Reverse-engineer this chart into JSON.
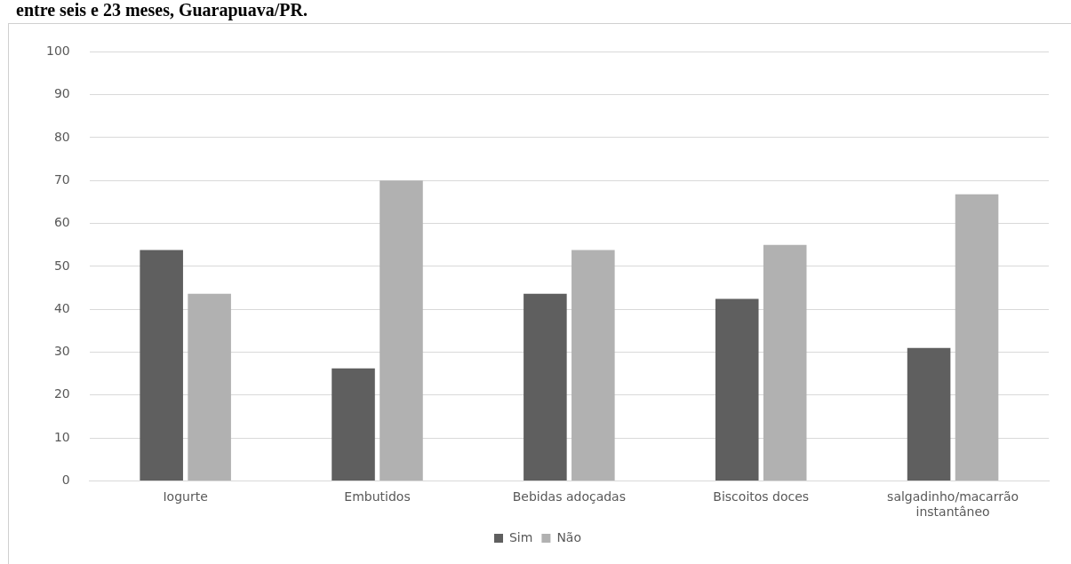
{
  "chart_data": {
    "type": "bar",
    "title": "entre seis e 23 meses, Guarapuava/PR.",
    "categories": [
      "Iogurte",
      "Embutidos",
      "Bebidas adoçadas",
      "Biscoitos doces",
      "salgadinho/macarrão instantâneo"
    ],
    "series": [
      {
        "name": "Sim",
        "color": "#5f5f5f",
        "values": [
          53.8,
          26.2,
          43.6,
          42.4,
          31.0
        ]
      },
      {
        "name": "Não",
        "color": "#b1b1b1",
        "values": [
          43.6,
          70.0,
          53.8,
          55.0,
          66.8
        ]
      }
    ],
    "ylim": [
      0,
      100
    ],
    "yticks": [
      0,
      10,
      20,
      30,
      40,
      50,
      60,
      70,
      80,
      90,
      100
    ],
    "grid": "y",
    "legend": "bottom"
  }
}
